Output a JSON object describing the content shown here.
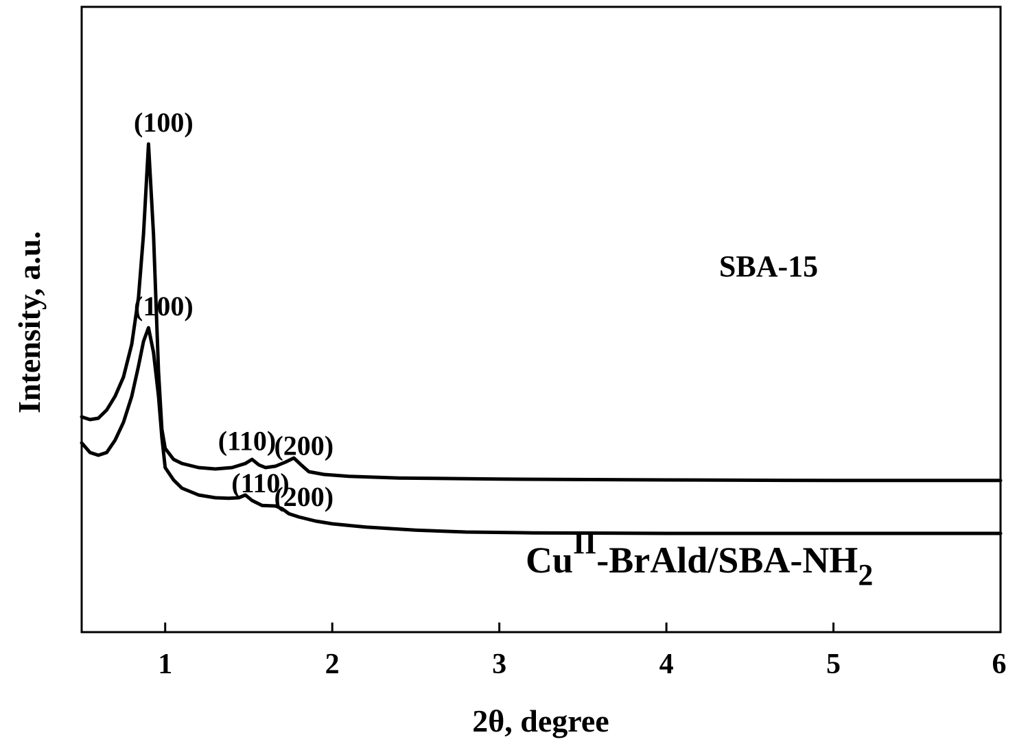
{
  "chart_data": {
    "type": "line",
    "xlabel": "2θ, degree",
    "ylabel": "Intensity, a.u.",
    "xlim": [
      0.5,
      6
    ],
    "xticks": [
      "1",
      "2",
      "3",
      "4",
      "5",
      "6"
    ],
    "grid": false,
    "legend": "none",
    "series": [
      {
        "name": "SBA-15",
        "x": [
          0.5,
          0.55,
          0.6,
          0.65,
          0.7,
          0.75,
          0.8,
          0.84,
          0.87,
          0.9,
          0.93,
          0.96,
          0.98,
          1.0,
          1.05,
          1.1,
          1.2,
          1.3,
          1.4,
          1.48,
          1.52,
          1.56,
          1.6,
          1.66,
          1.72,
          1.77,
          1.81,
          1.86,
          1.95,
          2.1,
          2.4,
          3.0,
          4.0,
          5.0,
          6.0
        ],
        "y": [
          0.785,
          0.775,
          0.78,
          0.81,
          0.86,
          0.93,
          1.05,
          1.22,
          1.45,
          1.78,
          1.45,
          0.95,
          0.74,
          0.67,
          0.63,
          0.615,
          0.6,
          0.595,
          0.6,
          0.615,
          0.63,
          0.61,
          0.6,
          0.605,
          0.62,
          0.635,
          0.612,
          0.585,
          0.575,
          0.568,
          0.562,
          0.558,
          0.555,
          0.553,
          0.553
        ]
      },
      {
        "name": "Cu^II-BrAld/SBA-NH_2",
        "x": [
          0.5,
          0.55,
          0.6,
          0.65,
          0.7,
          0.75,
          0.8,
          0.84,
          0.87,
          0.9,
          0.93,
          0.96,
          0.98,
          1.0,
          1.05,
          1.1,
          1.2,
          1.3,
          1.38,
          1.44,
          1.48,
          1.52,
          1.58,
          1.66,
          1.7,
          1.74,
          1.8,
          1.9,
          2.0,
          2.2,
          2.5,
          2.8,
          3.2,
          4.0,
          5.0,
          6.0
        ],
        "y": [
          0.69,
          0.655,
          0.645,
          0.655,
          0.7,
          0.765,
          0.86,
          0.97,
          1.06,
          1.11,
          1.02,
          0.86,
          0.71,
          0.6,
          0.555,
          0.525,
          0.5,
          0.49,
          0.488,
          0.49,
          0.5,
          0.48,
          0.462,
          0.46,
          0.45,
          0.432,
          0.42,
          0.405,
          0.395,
          0.383,
          0.372,
          0.365,
          0.362,
          0.36,
          0.36,
          0.36
        ]
      }
    ],
    "annotations": [
      {
        "series": 0,
        "text": "(100)",
        "x": 0.9
      },
      {
        "series": 0,
        "text": "(110)",
        "x": 1.49
      },
      {
        "series": 0,
        "text": "(200)",
        "x": 1.83
      },
      {
        "series": 1,
        "text": "(100)",
        "x": 0.9
      },
      {
        "series": 1,
        "text": "(110)",
        "x": 1.57
      },
      {
        "series": 1,
        "text": "(200)",
        "x": 1.83
      }
    ],
    "series_labels": {
      "top": "SBA-15",
      "bottom_main": "Cu",
      "bottom_sup": "II",
      "bottom_mid": "-BrAld/SBA-NH",
      "bottom_sub": "2"
    }
  }
}
